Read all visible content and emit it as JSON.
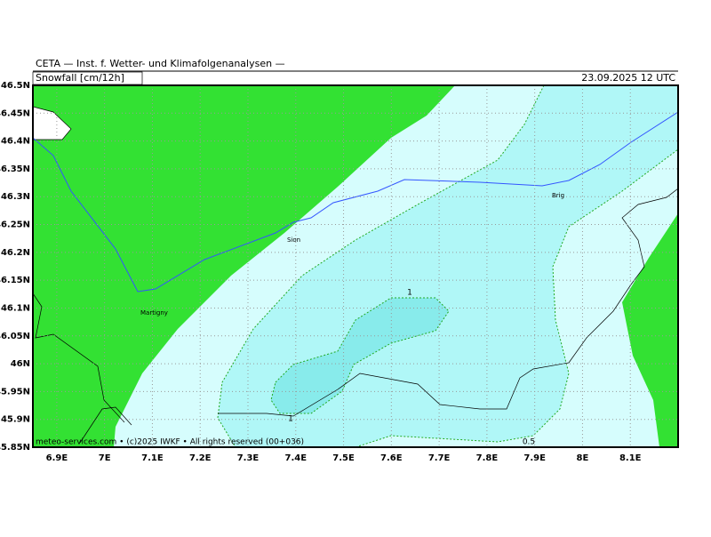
{
  "header": {
    "institute": "CETA — Inst. f. Wetter- und Klimafolgenanalysen —",
    "field": "Snowfall [cm/12h]",
    "date": "23.09.2025 12 UTC"
  },
  "map": {
    "lon_range": [
      6.85,
      8.2
    ],
    "lat_range": [
      45.85,
      46.5
    ],
    "lon_ticks": [
      {
        "value": 6.9,
        "label": "6.9E"
      },
      {
        "value": 7,
        "label": "7E"
      },
      {
        "value": 7.1,
        "label": "7.1E"
      },
      {
        "value": 7.2,
        "label": "7.2E"
      },
      {
        "value": 7.3,
        "label": "7.3E"
      },
      {
        "value": 7.4,
        "label": "7.4E"
      },
      {
        "value": 7.5,
        "label": "7.5E"
      },
      {
        "value": 7.6,
        "label": "7.6E"
      },
      {
        "value": 7.7,
        "label": "7.7E"
      },
      {
        "value": 7.8,
        "label": "7.8E"
      },
      {
        "value": 7.9,
        "label": "7.9E"
      },
      {
        "value": 8,
        "label": "8E"
      },
      {
        "value": 8.1,
        "label": "8.1E"
      }
    ],
    "lat_ticks": [
      {
        "value": 46.5,
        "label": "46.5N"
      },
      {
        "value": 46.45,
        "label": "46.45N"
      },
      {
        "value": 46.4,
        "label": "46.4N"
      },
      {
        "value": 46.35,
        "label": "46.35N"
      },
      {
        "value": 46.3,
        "label": "46.3N"
      },
      {
        "value": 46.25,
        "label": "46.25N"
      },
      {
        "value": 46.2,
        "label": "46.2N"
      },
      {
        "value": 46.15,
        "label": "46.15N"
      },
      {
        "value": 46.1,
        "label": "46.1N"
      },
      {
        "value": 46.05,
        "label": "46.05N"
      },
      {
        "value": 46,
        "label": "46N"
      },
      {
        "value": 45.95,
        "label": "45.95N"
      },
      {
        "value": 45.9,
        "label": "45.9N"
      },
      {
        "value": 45.85,
        "label": "45.85N"
      }
    ],
    "places": [
      "Sion",
      "Brig",
      "Martigny"
    ],
    "contour_labels": [
      "1",
      "1",
      "0.5"
    ]
  },
  "footer": "meteo-services.com • (c)2025 IWKF • All rights reserved (00+036)"
}
